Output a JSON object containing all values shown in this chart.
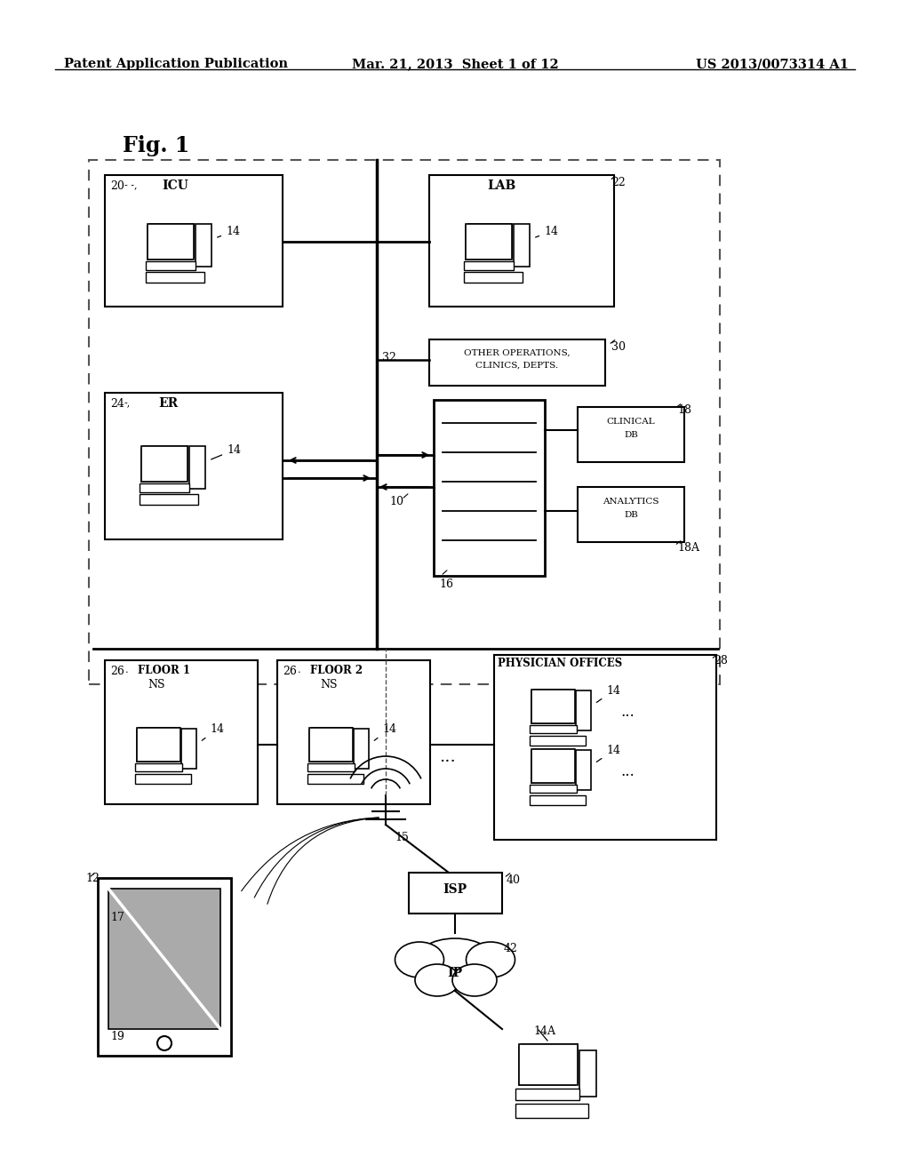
{
  "bg_color": "#ffffff",
  "header_left": "Patent Application Publication",
  "header_mid": "Mar. 21, 2013  Sheet 1 of 12",
  "header_right": "US 2013/0073314 A1",
  "fig_label": "Fig. 1"
}
